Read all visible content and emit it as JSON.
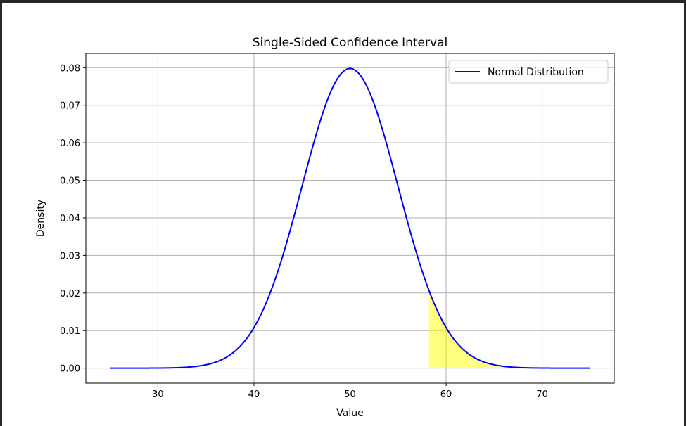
{
  "chart_data": {
    "type": "line",
    "title": "Single-Sided Confidence Interval",
    "xlabel": "Value",
    "ylabel": "Density",
    "xlim": [
      22.5,
      77.5
    ],
    "ylim": [
      -0.004,
      0.0838
    ],
    "xticks": [
      30,
      40,
      50,
      60,
      70
    ],
    "yticks": [
      0.0,
      0.01,
      0.02,
      0.03,
      0.04,
      0.05,
      0.06,
      0.07,
      0.08
    ],
    "ytick_labels": [
      "0.00",
      "0.01",
      "0.02",
      "0.03",
      "0.04",
      "0.05",
      "0.06",
      "0.07",
      "0.08"
    ],
    "grid": true,
    "legend_position": "top-right",
    "series": [
      {
        "name": "Normal Distribution",
        "distribution": "normal",
        "mean": 50,
        "std": 5,
        "x_range": [
          25,
          75
        ],
        "color": "#0000ff"
      }
    ],
    "shaded_region": {
      "x_from": 58.22,
      "x_to": 75,
      "color": "#ffff00",
      "opacity": 0.5
    }
  }
}
